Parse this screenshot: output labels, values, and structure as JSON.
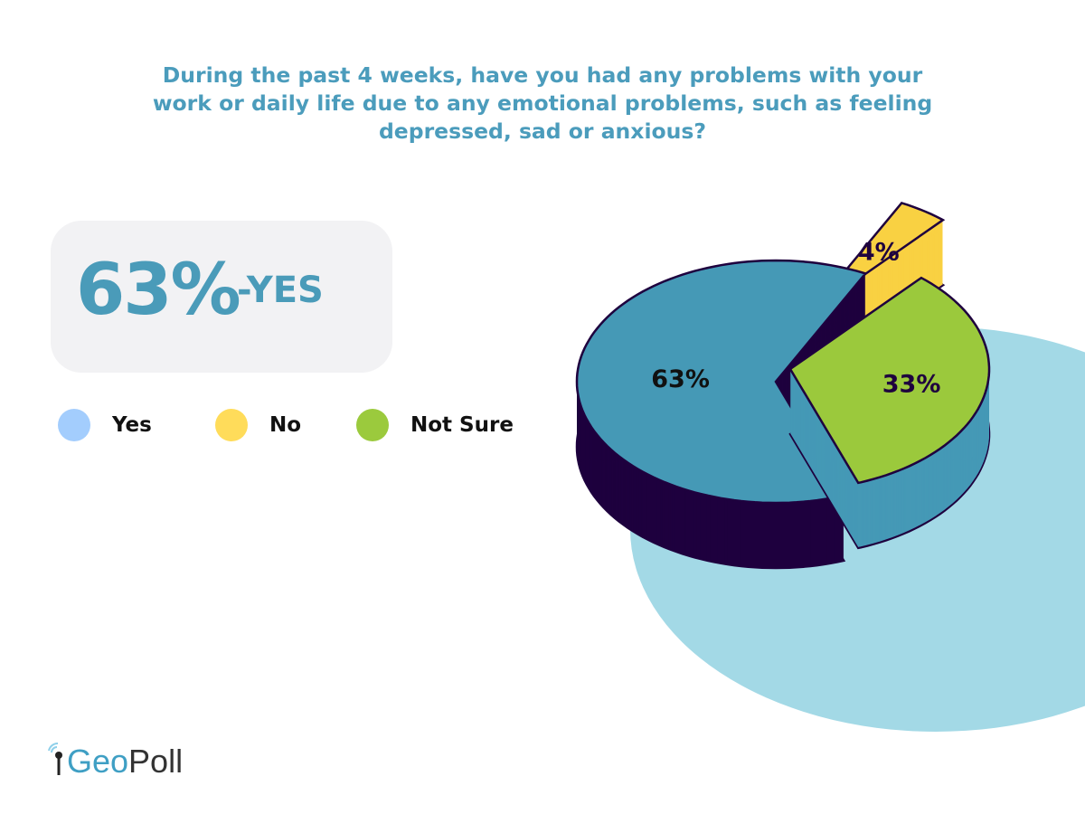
{
  "chart_data": {
    "type": "pie",
    "style": "3d-exploded",
    "title": "During the past 4 weeks, have you had any problems with your work or daily life due to any emotional problems, such as feeling depressed, sad or anxious?",
    "categories": [
      "Yes",
      "No",
      "Not Sure"
    ],
    "values": [
      63,
      4,
      33
    ],
    "data_labels": [
      "63%",
      "4%",
      "33%"
    ],
    "colors": {
      "Yes": "#4599b6",
      "No": "#f9d142",
      "Not Sure": "#9bc93c"
    },
    "legend_colors": {
      "Yes": "#a3cdfd",
      "No": "#ffdc5a",
      "Not Sure": "#9bca3d"
    },
    "legend": "left",
    "outline_color": "#1e003e",
    "backdrop_color": "#a3d9e6"
  },
  "highlight": {
    "value": "63%",
    "label": "-YES"
  },
  "logo": {
    "text_geo": "Geo",
    "text_poll": "Poll"
  },
  "title_color": "#4b9cbc"
}
